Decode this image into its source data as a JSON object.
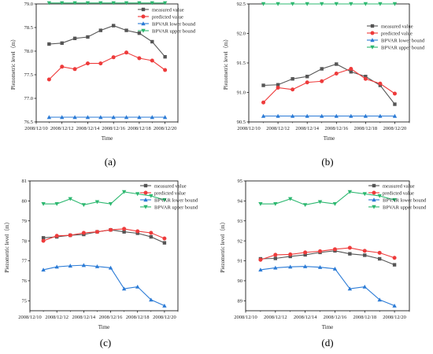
{
  "colors": {
    "measured": "#555555",
    "predicted": "#ee3b3b",
    "lower": "#2b7bd6",
    "upper": "#2db870"
  },
  "chart_data": [
    {
      "type": "line",
      "panel_label": "(a)",
      "xlabel": "Time",
      "ylabel": "Piezometric level（m）",
      "x_ticks": [
        "2008/12/10",
        "2008/12/12",
        "2008/12/14",
        "2008/12/16",
        "2008/12/18",
        "2008/12/20"
      ],
      "x": [
        1,
        2,
        3,
        4,
        5,
        6,
        7,
        8,
        9,
        10
      ],
      "xlim": [
        0,
        11
      ],
      "ylim": [
        76.5,
        79.0
      ],
      "y_ticks": [
        "76.5",
        "77.0",
        "77.5",
        "78.0",
        "78.5",
        "79.0"
      ],
      "legend_position": "top-right",
      "series": [
        {
          "name": "measured value",
          "marker": "square",
          "values": [
            78.15,
            78.17,
            78.27,
            78.3,
            78.44,
            78.54,
            78.44,
            78.38,
            78.2,
            77.88
          ]
        },
        {
          "name": "predicted value",
          "marker": "circle",
          "values": [
            77.4,
            77.67,
            77.62,
            77.74,
            77.74,
            77.87,
            77.97,
            77.85,
            77.8,
            77.6
          ]
        },
        {
          "name": "BPVAR lower bound",
          "marker": "triangle-up",
          "values": [
            76.6,
            76.6,
            76.6,
            76.6,
            76.6,
            76.6,
            76.6,
            76.6,
            76.6,
            76.6
          ]
        },
        {
          "name": "BPVAR upper bound",
          "marker": "triangle-down",
          "values": [
            79.02,
            79.02,
            79.02,
            79.02,
            79.02,
            79.02,
            79.02,
            79.02,
            79.02,
            79.02
          ]
        }
      ]
    },
    {
      "type": "line",
      "panel_label": "(b)",
      "xlabel": "Time",
      "ylabel": "Piezometric level（m）",
      "x_ticks": [
        "2008/12/10",
        "2008/12/12",
        "2008/12/14",
        "2008/12/16",
        "2008/12/18",
        "2008/12/20"
      ],
      "x": [
        1,
        2,
        3,
        4,
        5,
        6,
        7,
        8,
        9,
        10
      ],
      "xlim": [
        0,
        11
      ],
      "ylim": [
        90.5,
        92.5
      ],
      "y_ticks": [
        "90.5",
        "91.0",
        "91.5",
        "92.0",
        "92.5"
      ],
      "legend_position": "right",
      "series": [
        {
          "name": "measured value",
          "marker": "square",
          "values": [
            91.12,
            91.13,
            91.23,
            91.27,
            91.4,
            91.48,
            91.35,
            91.27,
            91.12,
            90.8
          ]
        },
        {
          "name": "predicted value",
          "marker": "circle",
          "values": [
            90.83,
            91.08,
            91.05,
            91.17,
            91.19,
            91.32,
            91.4,
            91.23,
            91.15,
            90.98
          ]
        },
        {
          "name": "BPVAR lower bound",
          "marker": "triangle-up",
          "values": [
            90.6,
            90.6,
            90.6,
            90.6,
            90.6,
            90.6,
            90.6,
            90.6,
            90.6,
            90.6
          ]
        },
        {
          "name": "BPVAR upper bound",
          "marker": "triangle-down",
          "values": [
            92.5,
            92.5,
            92.5,
            92.5,
            92.5,
            92.5,
            92.5,
            92.5,
            92.5,
            92.5
          ]
        }
      ]
    },
    {
      "type": "line",
      "panel_label": "(c)",
      "xlabel": "Time",
      "ylabel": "Piezometric level（m）",
      "x_ticks": [
        "2008/12/10",
        "2008/12/12",
        "2008/12/14",
        "2008/12/16",
        "2008/12/18",
        "2008/12/20"
      ],
      "x": [
        1,
        2,
        3,
        4,
        5,
        6,
        7,
        8,
        9,
        10
      ],
      "xlim": [
        0,
        11
      ],
      "ylim": [
        74.5,
        81.0
      ],
      "y_ticks": [
        "75",
        "76",
        "77",
        "78",
        "79",
        "80",
        "81"
      ],
      "legend_position": "top-right",
      "series": [
        {
          "name": "measured value",
          "marker": "square",
          "values": [
            78.15,
            78.2,
            78.28,
            78.32,
            78.45,
            78.55,
            78.45,
            78.38,
            78.2,
            77.9
          ]
        },
        {
          "name": "predicted value",
          "marker": "circle",
          "values": [
            78.0,
            78.25,
            78.28,
            78.4,
            78.45,
            78.55,
            78.6,
            78.48,
            78.4,
            78.12
          ]
        },
        {
          "name": "BPVAR lower bound",
          "marker": "triangle-up",
          "values": [
            76.55,
            76.7,
            76.75,
            76.78,
            76.72,
            76.65,
            75.6,
            75.7,
            75.05,
            74.75
          ]
        },
        {
          "name": "BPVAR upper bound",
          "marker": "triangle-down",
          "values": [
            79.85,
            79.85,
            80.1,
            79.8,
            79.95,
            79.85,
            80.45,
            80.35,
            80.25,
            80.05
          ]
        }
      ]
    },
    {
      "type": "line",
      "panel_label": "(d)",
      "xlabel": "Time",
      "ylabel": "Piezometric level（m）",
      "x_ticks": [
        "2008/12/10",
        "2008/12/12",
        "2008/12/14",
        "2008/12/16",
        "2008/12/18",
        "2008/12/20"
      ],
      "x": [
        1,
        2,
        3,
        4,
        5,
        6,
        7,
        8,
        9,
        10
      ],
      "xlim": [
        0,
        11
      ],
      "ylim": [
        88.5,
        95.0
      ],
      "y_ticks": [
        "89",
        "90",
        "91",
        "92",
        "93",
        "94",
        "95"
      ],
      "legend_position": "top-right",
      "series": [
        {
          "name": "measured value",
          "marker": "square",
          "values": [
            91.1,
            91.12,
            91.22,
            91.3,
            91.42,
            91.5,
            91.35,
            91.28,
            91.1,
            90.8
          ]
        },
        {
          "name": "predicted value",
          "marker": "circle",
          "values": [
            91.05,
            91.3,
            91.32,
            91.42,
            91.48,
            91.58,
            91.65,
            91.5,
            91.4,
            91.15
          ]
        },
        {
          "name": "BPVAR lower bound",
          "marker": "triangle-up",
          "values": [
            90.55,
            90.65,
            90.7,
            90.72,
            90.68,
            90.6,
            89.6,
            89.7,
            89.05,
            88.75
          ]
        },
        {
          "name": "BPVAR upper bound",
          "marker": "triangle-down",
          "values": [
            93.85,
            93.85,
            94.1,
            93.8,
            93.95,
            93.85,
            94.45,
            94.35,
            94.25,
            94.05
          ]
        }
      ]
    }
  ]
}
